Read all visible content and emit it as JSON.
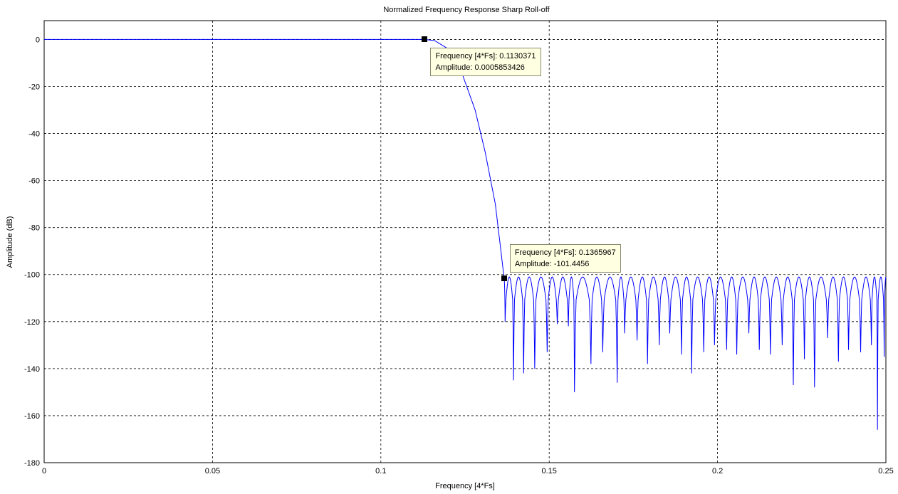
{
  "chart_data": {
    "type": "line",
    "title": "Normalized Frequency Response Sharp Roll-off",
    "xlabel": "Frequency [4*Fs]",
    "ylabel": "Amplitude (dB)",
    "xlim": [
      0,
      0.25
    ],
    "ylim": [
      -180,
      8
    ],
    "xticks": [
      "0",
      "0.05",
      "0.1",
      "0.15",
      "0.2",
      "0.25"
    ],
    "yticks": [
      "0",
      "-20",
      "-40",
      "-60",
      "-80",
      "-100",
      "-120",
      "-140",
      "-160",
      "-180"
    ],
    "grid": true,
    "line_color": "#0000ff",
    "passband": {
      "x_start": 0,
      "x_end": 0.1130371,
      "level_db": 0
    },
    "transition": [
      [
        0.1130371,
        0.0
      ],
      [
        0.116,
        -0.5
      ],
      [
        0.12,
        -4
      ],
      [
        0.124,
        -14
      ],
      [
        0.128,
        -30
      ],
      [
        0.131,
        -48
      ],
      [
        0.134,
        -70
      ],
      [
        0.1355,
        -88
      ],
      [
        0.1365967,
        -101.4456
      ]
    ],
    "stopband": {
      "x_start": 0.1365967,
      "x_end": 0.25,
      "peak_db": -101,
      "lobe_count": 36,
      "nulls": [
        [
          0.1369,
          -120
        ],
        [
          0.1394,
          -145
        ],
        [
          0.1424,
          -142
        ],
        [
          0.1457,
          -140
        ],
        [
          0.1494,
          -133
        ],
        [
          0.1524,
          -121
        ],
        [
          0.1557,
          -122
        ],
        [
          0.1575,
          -150
        ],
        [
          0.1624,
          -138
        ],
        [
          0.1659,
          -133
        ],
        [
          0.1702,
          -146
        ],
        [
          0.1724,
          -125
        ],
        [
          0.1761,
          -128
        ],
        [
          0.1792,
          -138
        ],
        [
          0.1827,
          -130
        ],
        [
          0.1858,
          -125
        ],
        [
          0.1893,
          -134
        ],
        [
          0.1923,
          -142
        ],
        [
          0.1959,
          -133
        ],
        [
          0.1991,
          -130
        ],
        [
          0.2027,
          -132
        ],
        [
          0.2057,
          -134
        ],
        [
          0.2093,
          -125
        ],
        [
          0.2124,
          -132
        ],
        [
          0.2157,
          -134
        ],
        [
          0.2192,
          -130
        ],
        [
          0.2225,
          -147
        ],
        [
          0.2258,
          -136
        ],
        [
          0.2288,
          -148
        ],
        [
          0.2327,
          -127
        ],
        [
          0.2359,
          -137
        ],
        [
          0.2389,
          -132
        ],
        [
          0.2425,
          -133
        ],
        [
          0.2457,
          -130
        ],
        [
          0.2475,
          -166
        ],
        [
          0.2495,
          -135
        ]
      ]
    },
    "datatips": [
      {
        "x": 0.1130371,
        "y": 0.0005853426,
        "freq_label": "Frequency [4*Fs]: 0.1130371",
        "amp_label": "Amplitude: 0.0005853426"
      },
      {
        "x": 0.1365967,
        "y": -101.4456,
        "freq_label": "Frequency [4*Fs]: 0.1365967",
        "amp_label": "Amplitude: -101.4456"
      }
    ]
  }
}
